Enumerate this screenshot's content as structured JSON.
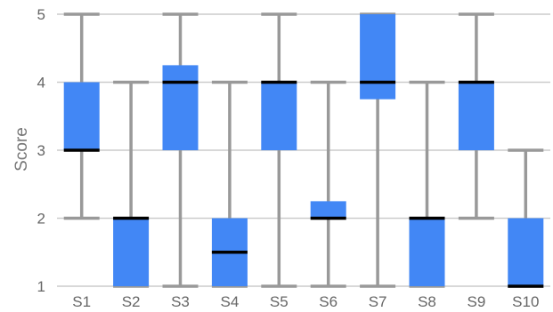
{
  "chart_data": {
    "type": "boxplot",
    "title": "",
    "xlabel": "",
    "ylabel": "Score",
    "ylim": [
      1,
      5
    ],
    "yticks": [
      1,
      2,
      3,
      4,
      5
    ],
    "grid": "horizontal",
    "legend": "none",
    "box_color": "#4287f5",
    "whisker_color": "#999999",
    "median_color": "#000000",
    "categories": [
      "S1",
      "S2",
      "S3",
      "S4",
      "S5",
      "S6",
      "S7",
      "S8",
      "S9",
      "S10"
    ],
    "boxes": [
      {
        "min": 2,
        "q1": 3,
        "median": 3,
        "q3": 4,
        "max": 5
      },
      {
        "min": 1,
        "q1": 1,
        "median": 2,
        "q3": 2,
        "max": 4
      },
      {
        "min": 1,
        "q1": 3,
        "median": 4,
        "q3": 4.25,
        "max": 5
      },
      {
        "min": 1,
        "q1": 1,
        "median": 1.5,
        "q3": 2,
        "max": 4
      },
      {
        "min": 1,
        "q1": 3,
        "median": 4,
        "q3": 4,
        "max": 5
      },
      {
        "min": 1,
        "q1": 2,
        "median": 2,
        "q3": 2.25,
        "max": 4
      },
      {
        "min": 1,
        "q1": 3.75,
        "median": 4,
        "q3": 5,
        "max": 5
      },
      {
        "min": 1,
        "q1": 1,
        "median": 2,
        "q3": 2,
        "max": 4
      },
      {
        "min": 2,
        "q1": 3,
        "median": 4,
        "q3": 4,
        "max": 5
      },
      {
        "min": 1,
        "q1": 1,
        "median": 1,
        "q3": 2,
        "max": 3
      }
    ]
  }
}
